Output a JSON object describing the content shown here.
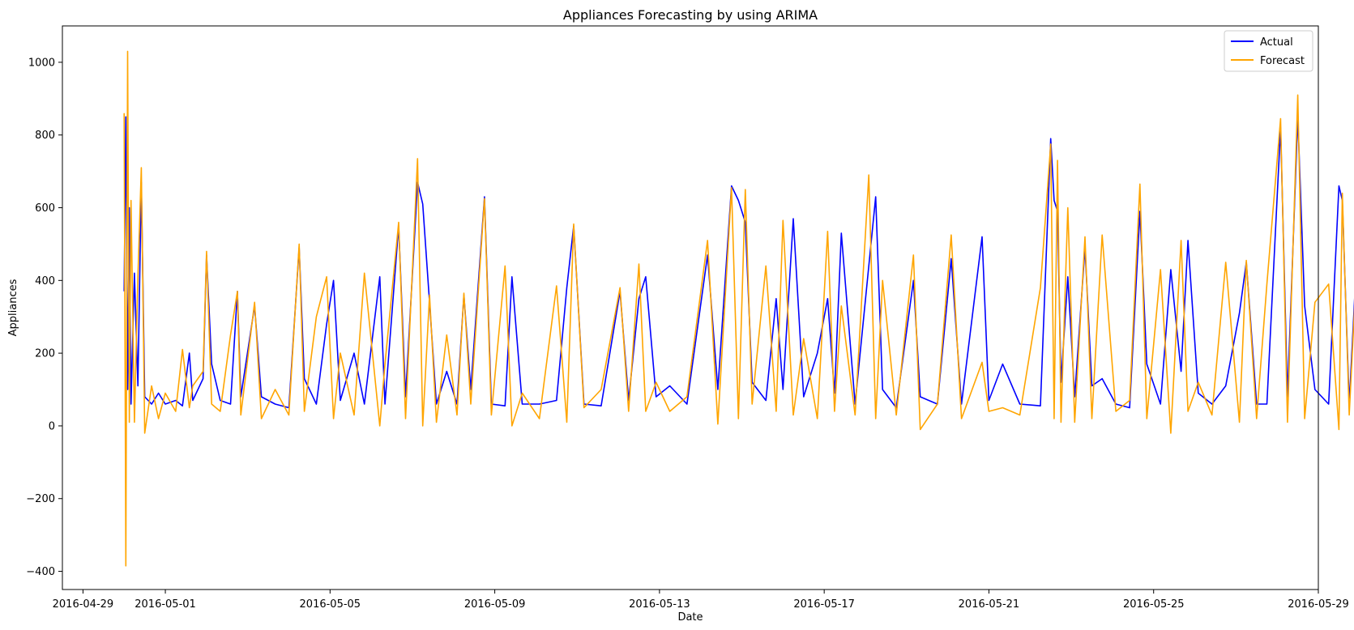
{
  "chart_data": {
    "type": "line",
    "title": "Appliances Forecasting by using ARIMA",
    "xlabel": "Date",
    "ylabel": "Appliances",
    "x_ticks": [
      "2016-04-29",
      "2016-05-01",
      "2016-05-05",
      "2016-05-09",
      "2016-05-13",
      "2016-05-17",
      "2016-05-21",
      "2016-05-25",
      "2016-05-29"
    ],
    "y_ticks": [
      -400,
      -200,
      0,
      200,
      400,
      600,
      800,
      1000
    ],
    "xlim": [
      "2016-04-28 12:00",
      "2016-05-29 00:00"
    ],
    "ylim": [
      -450,
      1100
    ],
    "grid": false,
    "legend_position": "top-right",
    "series": [
      {
        "name": "Actual",
        "color": "#0000ff",
        "points": [
          [
            "2016-04-30 00:00",
            370
          ],
          [
            "2016-04-30 01:00",
            850
          ],
          [
            "2016-04-30 02:00",
            100
          ],
          [
            "2016-04-30 03:00",
            600
          ],
          [
            "2016-04-30 04:00",
            60
          ],
          [
            "2016-04-30 06:00",
            420
          ],
          [
            "2016-04-30 08:00",
            110
          ],
          [
            "2016-04-30 10:00",
            670
          ],
          [
            "2016-04-30 12:00",
            80
          ],
          [
            "2016-04-30 16:00",
            60
          ],
          [
            "2016-04-30 20:00",
            90
          ],
          [
            "2016-05-01 00:00",
            60
          ],
          [
            "2016-05-01 06:00",
            70
          ],
          [
            "2016-05-01 10:00",
            55
          ],
          [
            "2016-05-01 14:00",
            200
          ],
          [
            "2016-05-01 16:00",
            70
          ],
          [
            "2016-05-01 22:00",
            130
          ],
          [
            "2016-05-02 00:00",
            470
          ],
          [
            "2016-05-02 03:00",
            170
          ],
          [
            "2016-05-02 08:00",
            70
          ],
          [
            "2016-05-02 14:00",
            60
          ],
          [
            "2016-05-02 18:00",
            370
          ],
          [
            "2016-05-02 20:00",
            80
          ],
          [
            "2016-05-03 04:00",
            330
          ],
          [
            "2016-05-03 08:00",
            80
          ],
          [
            "2016-05-03 16:00",
            60
          ],
          [
            "2016-05-04 00:00",
            50
          ],
          [
            "2016-05-04 06:00",
            490
          ],
          [
            "2016-05-04 09:00",
            130
          ],
          [
            "2016-05-04 16:00",
            60
          ],
          [
            "2016-05-04 22:00",
            280
          ],
          [
            "2016-05-05 02:00",
            400
          ],
          [
            "2016-05-05 06:00",
            70
          ],
          [
            "2016-05-05 14:00",
            200
          ],
          [
            "2016-05-05 20:00",
            60
          ],
          [
            "2016-05-06 05:00",
            410
          ],
          [
            "2016-05-06 08:00",
            60
          ],
          [
            "2016-05-06 16:00",
            550
          ],
          [
            "2016-05-06 20:00",
            80
          ],
          [
            "2016-05-07 03:00",
            670
          ],
          [
            "2016-05-07 06:00",
            610
          ],
          [
            "2016-05-07 10:00",
            340
          ],
          [
            "2016-05-07 14:00",
            60
          ],
          [
            "2016-05-07 20:00",
            150
          ],
          [
            "2016-05-08 02:00",
            60
          ],
          [
            "2016-05-08 06:00",
            360
          ],
          [
            "2016-05-08 10:00",
            100
          ],
          [
            "2016-05-08 18:00",
            630
          ],
          [
            "2016-05-08 22:00",
            60
          ],
          [
            "2016-05-09 06:00",
            55
          ],
          [
            "2016-05-09 10:00",
            410
          ],
          [
            "2016-05-09 16:00",
            60
          ],
          [
            "2016-05-10 02:00",
            60
          ],
          [
            "2016-05-10 12:00",
            70
          ],
          [
            "2016-05-10 18:00",
            380
          ],
          [
            "2016-05-10 22:00",
            550
          ],
          [
            "2016-05-11 04:00",
            60
          ],
          [
            "2016-05-11 14:00",
            55
          ],
          [
            "2016-05-12 01:00",
            370
          ],
          [
            "2016-05-12 06:00",
            70
          ],
          [
            "2016-05-12 12:00",
            350
          ],
          [
            "2016-05-12 16:00",
            410
          ],
          [
            "2016-05-12 22:00",
            80
          ],
          [
            "2016-05-13 06:00",
            110
          ],
          [
            "2016-05-13 16:00",
            60
          ],
          [
            "2016-05-14 04:00",
            470
          ],
          [
            "2016-05-14 10:00",
            100
          ],
          [
            "2016-05-14 18:00",
            660
          ],
          [
            "2016-05-14 22:00",
            620
          ],
          [
            "2016-05-15 02:00",
            560
          ],
          [
            "2016-05-15 06:00",
            120
          ],
          [
            "2016-05-15 14:00",
            70
          ],
          [
            "2016-05-15 20:00",
            350
          ],
          [
            "2016-05-16 00:00",
            100
          ],
          [
            "2016-05-16 06:00",
            570
          ],
          [
            "2016-05-16 12:00",
            80
          ],
          [
            "2016-05-16 20:00",
            200
          ],
          [
            "2016-05-17 02:00",
            350
          ],
          [
            "2016-05-17 06:00",
            90
          ],
          [
            "2016-05-17 10:00",
            530
          ],
          [
            "2016-05-17 18:00",
            60
          ],
          [
            "2016-05-18 02:00",
            440
          ],
          [
            "2016-05-18 06:00",
            630
          ],
          [
            "2016-05-18 10:00",
            100
          ],
          [
            "2016-05-18 18:00",
            50
          ],
          [
            "2016-05-19 04:00",
            400
          ],
          [
            "2016-05-19 08:00",
            80
          ],
          [
            "2016-05-19 18:00",
            60
          ],
          [
            "2016-05-20 02:00",
            460
          ],
          [
            "2016-05-20 08:00",
            60
          ],
          [
            "2016-05-20 20:00",
            520
          ],
          [
            "2016-05-21 00:00",
            70
          ],
          [
            "2016-05-21 08:00",
            170
          ],
          [
            "2016-05-21 18:00",
            60
          ],
          [
            "2016-05-22 06:00",
            55
          ],
          [
            "2016-05-22 12:00",
            790
          ],
          [
            "2016-05-22 14:00",
            620
          ],
          [
            "2016-05-22 16:00",
            590
          ],
          [
            "2016-05-22 18:00",
            120
          ],
          [
            "2016-05-22 22:00",
            410
          ],
          [
            "2016-05-23 02:00",
            80
          ],
          [
            "2016-05-23 08:00",
            490
          ],
          [
            "2016-05-23 12:00",
            110
          ],
          [
            "2016-05-23 18:00",
            130
          ],
          [
            "2016-05-24 02:00",
            60
          ],
          [
            "2016-05-24 10:00",
            50
          ],
          [
            "2016-05-24 16:00",
            590
          ],
          [
            "2016-05-24 20:00",
            170
          ],
          [
            "2016-05-25 04:00",
            60
          ],
          [
            "2016-05-25 10:00",
            430
          ],
          [
            "2016-05-25 16:00",
            150
          ],
          [
            "2016-05-25 20:00",
            510
          ],
          [
            "2016-05-26 02:00",
            90
          ],
          [
            "2016-05-26 10:00",
            60
          ],
          [
            "2016-05-26 18:00",
            110
          ],
          [
            "2016-05-27 02:00",
            310
          ],
          [
            "2016-05-27 06:00",
            450
          ],
          [
            "2016-05-27 12:00",
            60
          ],
          [
            "2016-05-27 18:00",
            60
          ],
          [
            "2016-05-28 02:00",
            820
          ],
          [
            "2016-05-28 06:00",
            80
          ],
          [
            "2016-05-28 12:00",
            850
          ],
          [
            "2016-05-28 16:00",
            330
          ],
          [
            "2016-05-28 22:00",
            100
          ],
          [
            "2016-05-29 06:00",
            60
          ],
          [
            "2016-05-29 12:00",
            660
          ],
          [
            "2016-05-29 14:00",
            620
          ],
          [
            "2016-05-29 18:00",
            60
          ],
          [
            "2016-05-29 22:00",
            430
          ]
        ]
      },
      {
        "name": "Forecast",
        "color": "#ffa500",
        "points": [
          [
            "2016-04-30 00:00",
            860
          ],
          [
            "2016-04-30 01:00",
            -385
          ],
          [
            "2016-04-30 02:00",
            1030
          ],
          [
            "2016-04-30 03:00",
            10
          ],
          [
            "2016-04-30 04:00",
            620
          ],
          [
            "2016-04-30 06:00",
            10
          ],
          [
            "2016-04-30 08:00",
            410
          ],
          [
            "2016-04-30 10:00",
            710
          ],
          [
            "2016-04-30 12:00",
            -20
          ],
          [
            "2016-04-30 16:00",
            110
          ],
          [
            "2016-04-30 20:00",
            20
          ],
          [
            "2016-05-01 00:00",
            90
          ],
          [
            "2016-05-01 06:00",
            40
          ],
          [
            "2016-05-01 10:00",
            210
          ],
          [
            "2016-05-01 14:00",
            50
          ],
          [
            "2016-05-01 16:00",
            110
          ],
          [
            "2016-05-01 22:00",
            150
          ],
          [
            "2016-05-02 00:00",
            480
          ],
          [
            "2016-05-02 03:00",
            60
          ],
          [
            "2016-05-02 08:00",
            40
          ],
          [
            "2016-05-02 14:00",
            250
          ],
          [
            "2016-05-02 18:00",
            370
          ],
          [
            "2016-05-02 20:00",
            30
          ],
          [
            "2016-05-03 04:00",
            340
          ],
          [
            "2016-05-03 08:00",
            20
          ],
          [
            "2016-05-03 16:00",
            100
          ],
          [
            "2016-05-04 00:00",
            30
          ],
          [
            "2016-05-04 06:00",
            500
          ],
          [
            "2016-05-04 09:00",
            40
          ],
          [
            "2016-05-04 16:00",
            300
          ],
          [
            "2016-05-04 22:00",
            410
          ],
          [
            "2016-05-05 02:00",
            20
          ],
          [
            "2016-05-05 06:00",
            200
          ],
          [
            "2016-05-05 14:00",
            30
          ],
          [
            "2016-05-05 20:00",
            420
          ],
          [
            "2016-05-06 05:00",
            0
          ],
          [
            "2016-05-06 08:00",
            170
          ],
          [
            "2016-05-06 16:00",
            560
          ],
          [
            "2016-05-06 20:00",
            20
          ],
          [
            "2016-05-07 03:00",
            735
          ],
          [
            "2016-05-07 06:00",
            0
          ],
          [
            "2016-05-07 10:00",
            360
          ],
          [
            "2016-05-07 14:00",
            10
          ],
          [
            "2016-05-07 20:00",
            250
          ],
          [
            "2016-05-08 02:00",
            30
          ],
          [
            "2016-05-08 06:00",
            365
          ],
          [
            "2016-05-08 10:00",
            60
          ],
          [
            "2016-05-08 18:00",
            625
          ],
          [
            "2016-05-08 22:00",
            30
          ],
          [
            "2016-05-09 06:00",
            440
          ],
          [
            "2016-05-09 10:00",
            0
          ],
          [
            "2016-05-09 16:00",
            90
          ],
          [
            "2016-05-10 02:00",
            20
          ],
          [
            "2016-05-10 12:00",
            385
          ],
          [
            "2016-05-10 18:00",
            10
          ],
          [
            "2016-05-10 22:00",
            555
          ],
          [
            "2016-05-11 04:00",
            50
          ],
          [
            "2016-05-11 14:00",
            100
          ],
          [
            "2016-05-12 01:00",
            380
          ],
          [
            "2016-05-12 06:00",
            40
          ],
          [
            "2016-05-12 12:00",
            445
          ],
          [
            "2016-05-12 16:00",
            40
          ],
          [
            "2016-05-12 22:00",
            120
          ],
          [
            "2016-05-13 06:00",
            40
          ],
          [
            "2016-05-13 16:00",
            80
          ],
          [
            "2016-05-14 04:00",
            510
          ],
          [
            "2016-05-14 10:00",
            5
          ],
          [
            "2016-05-14 18:00",
            655
          ],
          [
            "2016-05-14 22:00",
            20
          ],
          [
            "2016-05-15 02:00",
            650
          ],
          [
            "2016-05-15 06:00",
            60
          ],
          [
            "2016-05-15 14:00",
            440
          ],
          [
            "2016-05-15 20:00",
            40
          ],
          [
            "2016-05-16 00:00",
            565
          ],
          [
            "2016-05-16 06:00",
            30
          ],
          [
            "2016-05-16 12:00",
            240
          ],
          [
            "2016-05-16 20:00",
            20
          ],
          [
            "2016-05-17 02:00",
            535
          ],
          [
            "2016-05-17 06:00",
            40
          ],
          [
            "2016-05-17 10:00",
            330
          ],
          [
            "2016-05-17 18:00",
            30
          ],
          [
            "2016-05-18 02:00",
            690
          ],
          [
            "2016-05-18 06:00",
            20
          ],
          [
            "2016-05-18 10:00",
            400
          ],
          [
            "2016-05-18 18:00",
            30
          ],
          [
            "2016-05-19 04:00",
            470
          ],
          [
            "2016-05-19 08:00",
            -10
          ],
          [
            "2016-05-19 18:00",
            60
          ],
          [
            "2016-05-20 02:00",
            525
          ],
          [
            "2016-05-20 08:00",
            20
          ],
          [
            "2016-05-20 20:00",
            175
          ],
          [
            "2016-05-21 00:00",
            40
          ],
          [
            "2016-05-21 08:00",
            50
          ],
          [
            "2016-05-21 18:00",
            30
          ],
          [
            "2016-05-22 06:00",
            380
          ],
          [
            "2016-05-22 12:00",
            775
          ],
          [
            "2016-05-22 14:00",
            20
          ],
          [
            "2016-05-22 16:00",
            730
          ],
          [
            "2016-05-22 18:00",
            10
          ],
          [
            "2016-05-22 22:00",
            600
          ],
          [
            "2016-05-23 02:00",
            10
          ],
          [
            "2016-05-23 08:00",
            520
          ],
          [
            "2016-05-23 12:00",
            20
          ],
          [
            "2016-05-23 18:00",
            525
          ],
          [
            "2016-05-24 02:00",
            40
          ],
          [
            "2016-05-24 10:00",
            70
          ],
          [
            "2016-05-24 16:00",
            665
          ],
          [
            "2016-05-24 20:00",
            20
          ],
          [
            "2016-05-25 04:00",
            430
          ],
          [
            "2016-05-25 10:00",
            -20
          ],
          [
            "2016-05-25 16:00",
            510
          ],
          [
            "2016-05-25 20:00",
            40
          ],
          [
            "2016-05-26 02:00",
            120
          ],
          [
            "2016-05-26 10:00",
            30
          ],
          [
            "2016-05-26 18:00",
            450
          ],
          [
            "2016-05-27 02:00",
            10
          ],
          [
            "2016-05-27 06:00",
            455
          ],
          [
            "2016-05-27 12:00",
            20
          ],
          [
            "2016-05-27 18:00",
            390
          ],
          [
            "2016-05-28 02:00",
            845
          ],
          [
            "2016-05-28 06:00",
            10
          ],
          [
            "2016-05-28 12:00",
            910
          ],
          [
            "2016-05-28 16:00",
            20
          ],
          [
            "2016-05-28 22:00",
            340
          ],
          [
            "2016-05-29 06:00",
            390
          ],
          [
            "2016-05-29 12:00",
            -10
          ],
          [
            "2016-05-29 14:00",
            640
          ],
          [
            "2016-05-29 18:00",
            30
          ],
          [
            "2016-05-29 22:00",
            410
          ]
        ]
      }
    ]
  }
}
